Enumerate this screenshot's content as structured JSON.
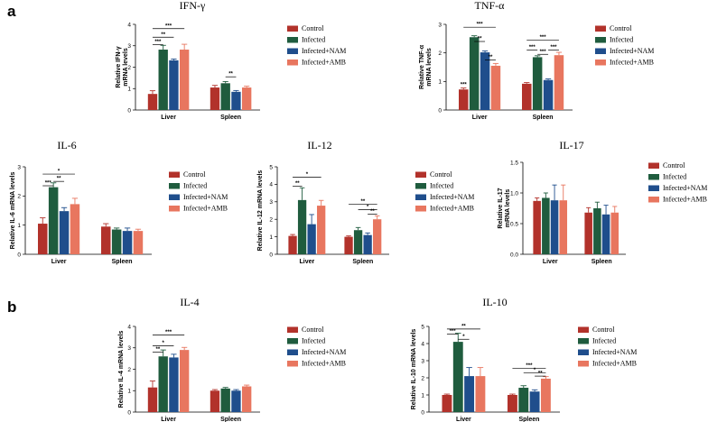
{
  "panel_labels": [
    "a",
    "b"
  ],
  "colors": {
    "Control": "#b2322b",
    "Infected": "#1f5c3e",
    "Infected+NAM": "#1f4e8c",
    "Infected+AMB": "#e8765f"
  },
  "chart_data": [
    {
      "id": "ifng",
      "type": "bar",
      "title": "IFN-γ",
      "ylabel": [
        "Relative IFN-γ",
        "mRNA levels"
      ],
      "categories": [
        "Liver",
        "Spleen"
      ],
      "ylim": [
        0,
        4
      ],
      "yticks": [
        0,
        1,
        2,
        3,
        4
      ],
      "series": [
        {
          "name": "Control",
          "values": [
            0.75,
            1.05
          ],
          "errors": [
            0.15,
            0.1
          ]
        },
        {
          "name": "Infected",
          "values": [
            2.82,
            1.25
          ],
          "errors": [
            0.2,
            0.08
          ]
        },
        {
          "name": "Infected+NAM",
          "values": [
            2.32,
            0.85
          ],
          "errors": [
            0.06,
            0.06
          ]
        },
        {
          "name": "Infected+AMB",
          "values": [
            2.82,
            1.05
          ],
          "errors": [
            0.25,
            0.06
          ]
        }
      ],
      "significance": [
        {
          "group": 0,
          "from": 0,
          "to": 3,
          "y": 3.8,
          "label": "***"
        },
        {
          "group": 0,
          "from": 0,
          "to": 2,
          "y": 3.4,
          "label": "**"
        },
        {
          "group": 0,
          "from": 0,
          "to": 1,
          "y": 3.05,
          "label": "***"
        },
        {
          "group": 1,
          "from": 1,
          "to": 2,
          "y": 1.55,
          "label": "**"
        }
      ]
    },
    {
      "id": "tnfa",
      "type": "bar",
      "title": "TNF-α",
      "ylabel": [
        "Relative TNF-α",
        "mRNA levels"
      ],
      "categories": [
        "Liver",
        "Spleen"
      ],
      "ylim": [
        0,
        3
      ],
      "yticks": [
        0,
        1,
        2,
        3
      ],
      "series": [
        {
          "name": "Control",
          "values": [
            0.72,
            0.92
          ],
          "errors": [
            0.05,
            0.04
          ]
        },
        {
          "name": "Infected",
          "values": [
            2.55,
            1.85
          ],
          "errors": [
            0.05,
            0.05
          ]
        },
        {
          "name": "Infected+NAM",
          "values": [
            2.02,
            1.05
          ],
          "errors": [
            0.05,
            0.04
          ]
        },
        {
          "name": "Infected+AMB",
          "values": [
            1.55,
            1.92
          ],
          "errors": [
            0.08,
            0.1
          ]
        }
      ],
      "significance": [
        {
          "group": 0,
          "from": 0,
          "to": 3,
          "y": 2.9,
          "label": "***"
        },
        {
          "group": 0,
          "from": 1,
          "to": 2,
          "y": 2.4,
          "label": "**"
        },
        {
          "group": 0,
          "from": 2,
          "to": 3,
          "y": 1.75,
          "label": "**"
        },
        {
          "group": 1,
          "from": 0,
          "to": 3,
          "y": 2.45,
          "label": "***"
        },
        {
          "group": 1,
          "from": 0,
          "to": 1,
          "y": 2.1,
          "label": "***"
        },
        {
          "group": 1,
          "from": 2,
          "to": 3,
          "y": 2.1,
          "label": "***"
        },
        {
          "group": 1,
          "from": 1,
          "to": 2,
          "y": 1.95,
          "label": "***"
        }
      ],
      "annotations": [
        {
          "group": 0,
          "bar": 0,
          "label": "***"
        }
      ]
    },
    {
      "id": "il6",
      "type": "bar",
      "title": "IL-6",
      "ylabel": [
        "Relative IL-6 mRNA levels"
      ],
      "categories": [
        "Liver",
        "Spleen"
      ],
      "ylim": [
        0,
        3
      ],
      "yticks": [
        0,
        1,
        2,
        3
      ],
      "series": [
        {
          "name": "Control",
          "values": [
            1.05,
            0.95
          ],
          "errors": [
            0.2,
            0.1
          ]
        },
        {
          "name": "Infected",
          "values": [
            2.3,
            0.85
          ],
          "errors": [
            0.15,
            0.05
          ]
        },
        {
          "name": "Infected+NAM",
          "values": [
            1.48,
            0.8
          ],
          "errors": [
            0.12,
            0.1
          ]
        },
        {
          "name": "Infected+AMB",
          "values": [
            1.72,
            0.8
          ],
          "errors": [
            0.2,
            0.06
          ]
        }
      ],
      "significance": [
        {
          "group": 0,
          "from": 0,
          "to": 3,
          "y": 2.75,
          "label": "*"
        },
        {
          "group": 0,
          "from": 1,
          "to": 2,
          "y": 2.5,
          "label": "**"
        },
        {
          "group": 0,
          "from": 0,
          "to": 1,
          "y": 2.35,
          "label": "***"
        }
      ]
    },
    {
      "id": "il12",
      "type": "bar",
      "title": "IL-12",
      "ylabel": [
        "Relative IL-12 mRNA levels"
      ],
      "categories": [
        "Liver",
        "Spleen"
      ],
      "ylim": [
        0,
        5
      ],
      "yticks": [
        0,
        1,
        2,
        3,
        4,
        5
      ],
      "series": [
        {
          "name": "Control",
          "values": [
            1.05,
            1.0
          ],
          "errors": [
            0.08,
            0.05
          ]
        },
        {
          "name": "Infected",
          "values": [
            3.1,
            1.38
          ],
          "errors": [
            0.7,
            0.15
          ]
        },
        {
          "name": "Infected+NAM",
          "values": [
            1.72,
            1.1
          ],
          "errors": [
            0.55,
            0.12
          ]
        },
        {
          "name": "Infected+AMB",
          "values": [
            2.78,
            2.0
          ],
          "errors": [
            0.3,
            0.2
          ]
        }
      ],
      "significance": [
        {
          "group": 0,
          "from": 0,
          "to": 3,
          "y": 4.4,
          "label": "*"
        },
        {
          "group": 0,
          "from": 0,
          "to": 1,
          "y": 3.9,
          "label": "**"
        },
        {
          "group": 1,
          "from": 0,
          "to": 3,
          "y": 2.85,
          "label": "**"
        },
        {
          "group": 1,
          "from": 1,
          "to": 3,
          "y": 2.55,
          "label": "*"
        },
        {
          "group": 1,
          "from": 2,
          "to": 3,
          "y": 2.3,
          "label": "**"
        }
      ]
    },
    {
      "id": "il17",
      "type": "bar",
      "title": "IL-17",
      "ylabel": [
        "Relative IL-17",
        "mRNA levels"
      ],
      "categories": [
        "Liver",
        "Spleen"
      ],
      "ylim": [
        0,
        1.5
      ],
      "yticks": [
        0.0,
        0.5,
        1.0,
        1.5
      ],
      "series": [
        {
          "name": "Control",
          "values": [
            0.87,
            0.68
          ],
          "errors": [
            0.05,
            0.08
          ]
        },
        {
          "name": "Infected",
          "values": [
            0.92,
            0.75
          ],
          "errors": [
            0.08,
            0.1
          ]
        },
        {
          "name": "Infected+NAM",
          "values": [
            0.88,
            0.65
          ],
          "errors": [
            0.25,
            0.15
          ]
        },
        {
          "name": "Infected+AMB",
          "values": [
            0.88,
            0.68
          ],
          "errors": [
            0.25,
            0.1
          ]
        }
      ],
      "significance": []
    },
    {
      "id": "il4",
      "type": "bar",
      "title": "IL-4",
      "ylabel": [
        "Relative IL-4 mRNA levels"
      ],
      "categories": [
        "Liver",
        "Spleen"
      ],
      "ylim": [
        0,
        4
      ],
      "yticks": [
        0,
        1,
        2,
        3,
        4
      ],
      "series": [
        {
          "name": "Control",
          "values": [
            1.15,
            1.0
          ],
          "errors": [
            0.3,
            0.05
          ]
        },
        {
          "name": "Infected",
          "values": [
            2.6,
            1.1
          ],
          "errors": [
            0.3,
            0.05
          ]
        },
        {
          "name": "Infected+NAM",
          "values": [
            2.55,
            1.0
          ],
          "errors": [
            0.15,
            0.05
          ]
        },
        {
          "name": "Infected+AMB",
          "values": [
            2.9,
            1.2
          ],
          "errors": [
            0.12,
            0.06
          ]
        }
      ],
      "significance": [
        {
          "group": 0,
          "from": 0,
          "to": 3,
          "y": 3.6,
          "label": "***"
        },
        {
          "group": 0,
          "from": 0,
          "to": 2,
          "y": 3.1,
          "label": "*"
        },
        {
          "group": 0,
          "from": 0,
          "to": 1,
          "y": 2.8,
          "label": "**"
        }
      ]
    },
    {
      "id": "il10",
      "type": "bar",
      "title": "IL-10",
      "ylabel": [
        "Relative IL-10 mRNA levels"
      ],
      "categories": [
        "Liver",
        "Spleen"
      ],
      "ylim": [
        0,
        5
      ],
      "yticks": [
        0,
        1,
        2,
        3,
        4,
        5
      ],
      "series": [
        {
          "name": "Control",
          "values": [
            1.0,
            1.0
          ],
          "errors": [
            0.05,
            0.05
          ]
        },
        {
          "name": "Infected",
          "values": [
            4.1,
            1.42
          ],
          "errors": [
            0.5,
            0.12
          ]
        },
        {
          "name": "Infected+NAM",
          "values": [
            2.1,
            1.2
          ],
          "errors": [
            0.5,
            0.1
          ]
        },
        {
          "name": "Infected+AMB",
          "values": [
            2.1,
            1.95
          ],
          "errors": [
            0.5,
            0.12
          ]
        }
      ],
      "significance": [
        {
          "group": 0,
          "from": 0,
          "to": 3,
          "y": 4.85,
          "label": "**"
        },
        {
          "group": 0,
          "from": 0,
          "to": 1,
          "y": 4.55,
          "label": "***"
        },
        {
          "group": 0,
          "from": 1,
          "to": 2,
          "y": 4.25,
          "label": "*"
        },
        {
          "group": 1,
          "from": 0,
          "to": 3,
          "y": 2.55,
          "label": "***"
        },
        {
          "group": 1,
          "from": 1,
          "to": 3,
          "y": 2.3,
          "label": "*"
        },
        {
          "group": 1,
          "from": 2,
          "to": 3,
          "y": 2.1,
          "label": "**"
        }
      ]
    }
  ]
}
